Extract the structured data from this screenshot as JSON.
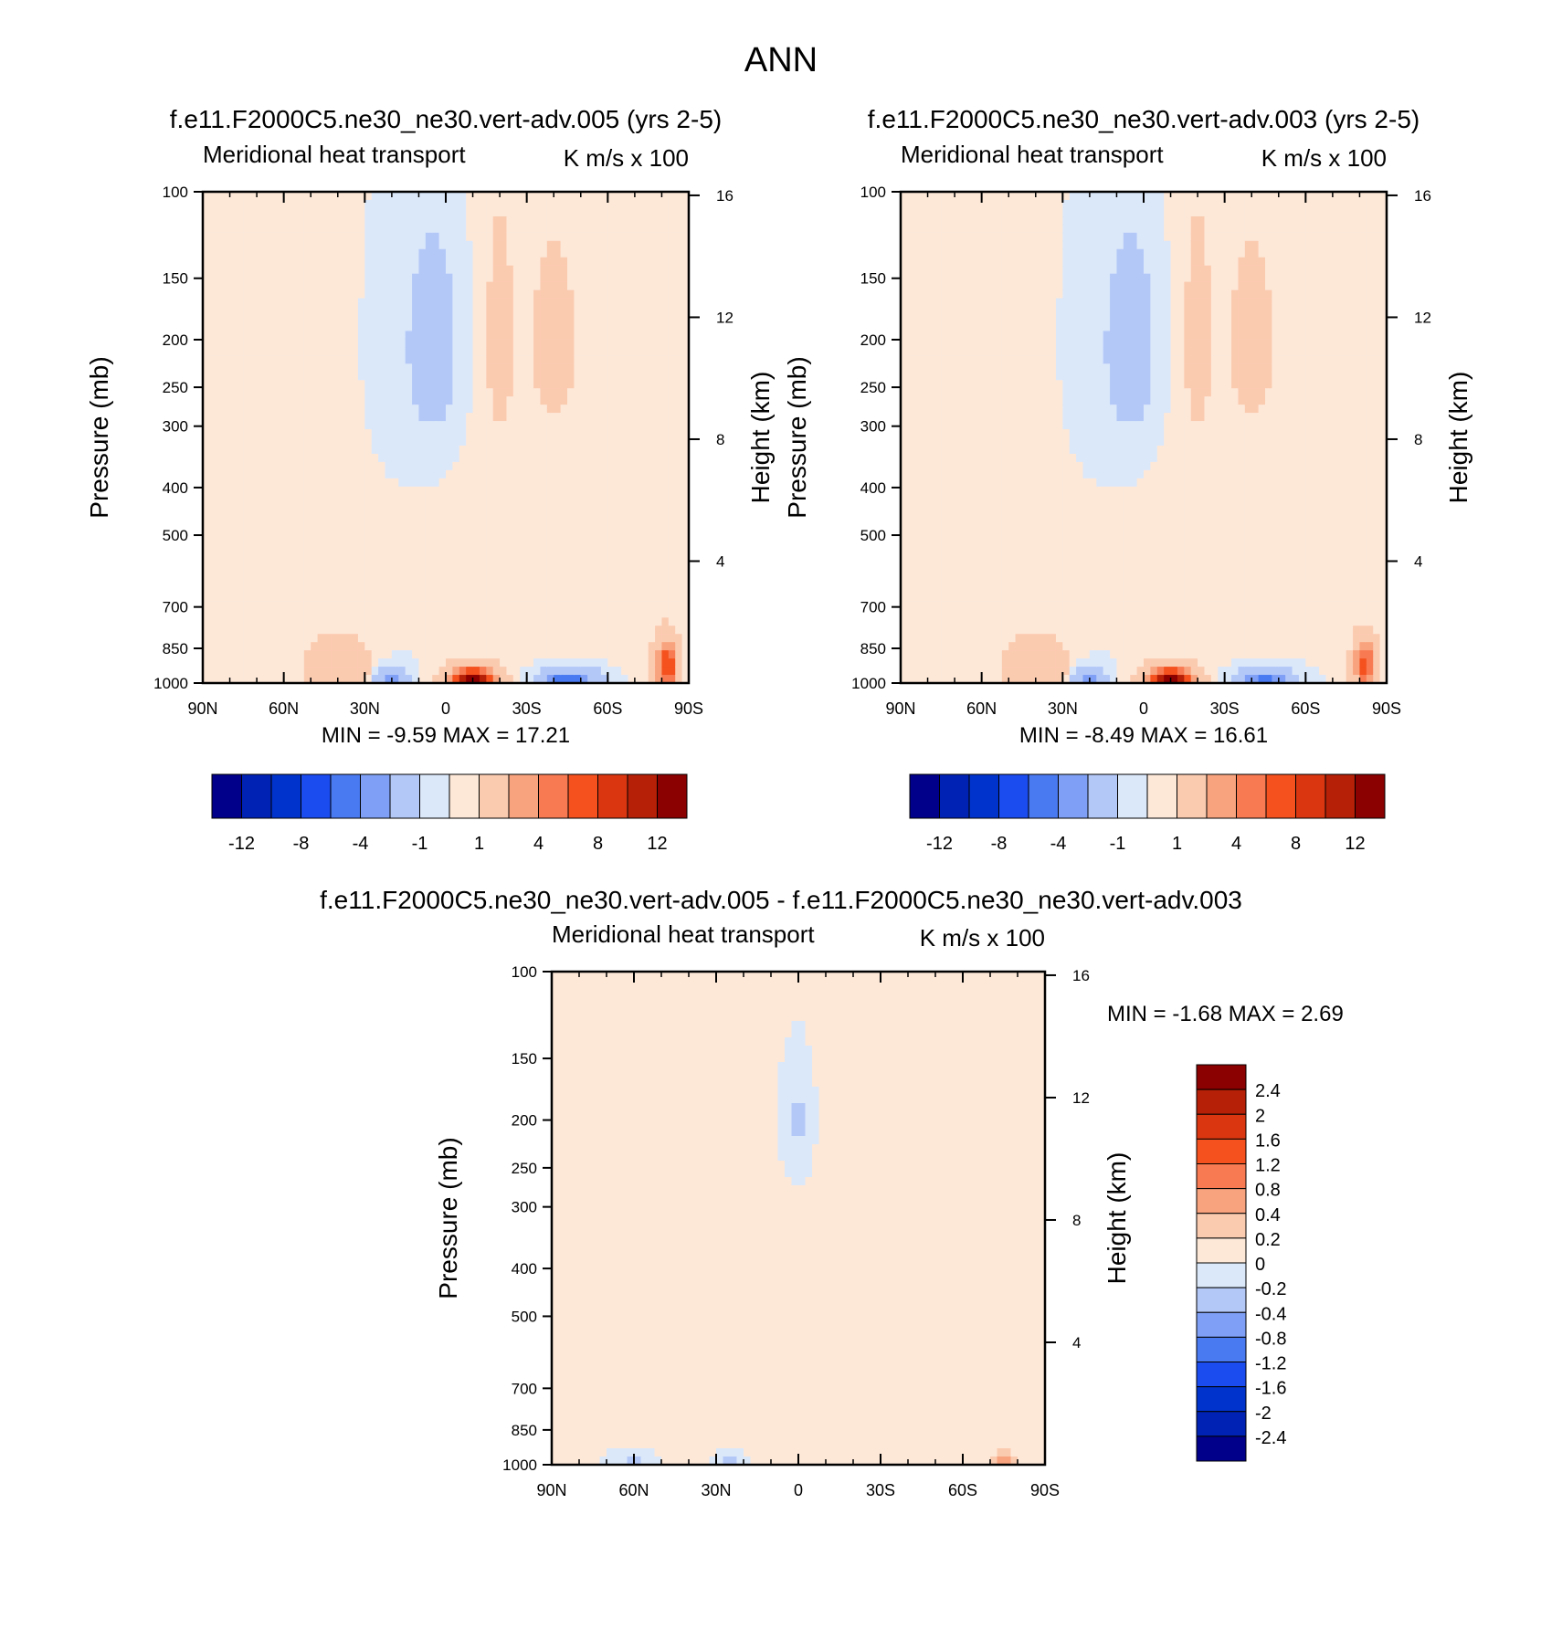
{
  "page_title": "ANN",
  "colors": {
    "main": [
      "#00008b",
      "#0022b4",
      "#0033cc",
      "#1a4cf0",
      "#4a7af2",
      "#7e9ff5",
      "#b4c8f8",
      "#dbe8fa",
      "#fde8d8",
      "#fbcbb0",
      "#f9a37e",
      "#f87a52",
      "#f4511e",
      "#da3610",
      "#b52007",
      "#8b0000"
    ],
    "diff": [
      "#00008b",
      "#0022b4",
      "#0033cc",
      "#1a4cf0",
      "#4a7af2",
      "#7e9ff5",
      "#b4c8f8",
      "#dbe8fa",
      "#fde8d8",
      "#fbcbb0",
      "#f9a37e",
      "#f87a52",
      "#f4511e",
      "#da3610",
      "#b52007",
      "#8b0000"
    ]
  },
  "chart_data": [
    {
      "type": "heatmap",
      "title": "f.e11.F2000C5.ne30_ne30.vert-adv.005 (yrs 2-5)",
      "subtitle_left": "Meridional heat transport",
      "subtitle_right": "K m/s x 100",
      "ylabel": "Pressure (mb)",
      "ylabel_right": "Height (km)",
      "x_ticks": [
        "90N",
        "60N",
        "30N",
        "0",
        "30S",
        "60S",
        "90S"
      ],
      "y_ticks": [
        "100",
        "150",
        "200",
        "250",
        "300",
        "400",
        "500",
        "700",
        "850",
        "1000"
      ],
      "y_right_ticks": [
        "16",
        "12",
        "8",
        "4"
      ],
      "min_max": "MIN =  -9.59  MAX =  17.21",
      "colorbar_labels": [
        "-12",
        "-8",
        "-4",
        "-1",
        "1",
        "4",
        "8",
        "12"
      ],
      "x_range": [
        90,
        -90
      ],
      "y_range": [
        1000,
        100
      ],
      "fields": [
        {
          "level": 0.5,
          "cx": -40,
          "cy": 400,
          "wx": 18,
          "wy": 350
        },
        {
          "level": 2.5,
          "cx": -20,
          "cy": 200,
          "wx": 3,
          "wy": 60
        },
        {
          "level": -3,
          "cx": 5,
          "cy": 210,
          "wx": 6,
          "wy": 60
        },
        {
          "level": 2,
          "cx": -40,
          "cy": 200,
          "wx": 5,
          "wy": 50
        },
        {
          "level": 3.5,
          "cx": 40,
          "cy": 930,
          "wx": 8,
          "wy": 90
        },
        {
          "level": -6,
          "cx": 20,
          "cy": 990,
          "wx": 4,
          "wy": 40
        },
        {
          "level": 16,
          "cx": -10,
          "cy": 990,
          "wx": 6,
          "wy": 45
        },
        {
          "level": -8,
          "cx": -45,
          "cy": 990,
          "wx": 7,
          "wy": 40
        },
        {
          "level": 10,
          "cx": -82,
          "cy": 920,
          "wx": 3,
          "wy": 80
        }
      ]
    },
    {
      "type": "heatmap",
      "title": "f.e11.F2000C5.ne30_ne30.vert-adv.003 (yrs 2-5)",
      "subtitle_left": "Meridional heat transport",
      "subtitle_right": "K m/s x 100",
      "ylabel": "Pressure (mb)",
      "ylabel_right": "Height (km)",
      "x_ticks": [
        "90N",
        "60N",
        "30N",
        "0",
        "30S",
        "60S",
        "90S"
      ],
      "y_ticks": [
        "100",
        "150",
        "200",
        "250",
        "300",
        "400",
        "500",
        "700",
        "850",
        "1000"
      ],
      "y_right_ticks": [
        "16",
        "12",
        "8",
        "4"
      ],
      "min_max": "MIN =  -8.49  MAX =  16.61",
      "colorbar_labels": [
        "-12",
        "-8",
        "-4",
        "-1",
        "1",
        "4",
        "8",
        "12"
      ],
      "x_range": [
        90,
        -90
      ],
      "y_range": [
        1000,
        100
      ],
      "fields": [
        {
          "level": 0.5,
          "cx": -40,
          "cy": 400,
          "wx": 18,
          "wy": 350
        },
        {
          "level": 2.5,
          "cx": -20,
          "cy": 200,
          "wx": 3,
          "wy": 60
        },
        {
          "level": -3,
          "cx": 5,
          "cy": 210,
          "wx": 6,
          "wy": 60
        },
        {
          "level": 2,
          "cx": -40,
          "cy": 200,
          "wx": 5,
          "wy": 50
        },
        {
          "level": 3.5,
          "cx": 40,
          "cy": 930,
          "wx": 8,
          "wy": 90
        },
        {
          "level": -6,
          "cx": 20,
          "cy": 990,
          "wx": 4,
          "wy": 40
        },
        {
          "level": 15,
          "cx": -10,
          "cy": 990,
          "wx": 6,
          "wy": 45
        },
        {
          "level": -7,
          "cx": -45,
          "cy": 990,
          "wx": 7,
          "wy": 40
        },
        {
          "level": 9,
          "cx": -82,
          "cy": 920,
          "wx": 3,
          "wy": 80
        }
      ]
    },
    {
      "type": "heatmap",
      "title": "f.e11.F2000C5.ne30_ne30.vert-adv.005 - f.e11.F2000C5.ne30_ne30.vert-adv.003",
      "subtitle_left": "Meridional heat transport",
      "subtitle_right": "K m/s x 100",
      "ylabel": "Pressure (mb)",
      "ylabel_right": "Height (km)",
      "x_ticks": [
        "90N",
        "60N",
        "30N",
        "0",
        "30S",
        "60S",
        "90S"
      ],
      "y_ticks": [
        "100",
        "150",
        "200",
        "250",
        "300",
        "400",
        "500",
        "700",
        "850",
        "1000"
      ],
      "y_right_ticks": [
        "16",
        "12",
        "8",
        "4"
      ],
      "min_max": "MIN =  -1.68  MAX =    2.69",
      "colorbar_labels": [
        "2.4",
        "2",
        "1.6",
        "1.2",
        "0.8",
        "0.4",
        "0.2",
        "0",
        "-0.2",
        "-0.4",
        "-0.8",
        "-1.2",
        "-1.6",
        "-2",
        "-2.4"
      ],
      "x_range": [
        90,
        -90
      ],
      "y_range": [
        1000,
        100
      ],
      "fields": [
        {
          "level": 0.1,
          "cx": -20,
          "cy": 500,
          "wx": 25,
          "wy": 500
        },
        {
          "level": -0.3,
          "cx": 0,
          "cy": 200,
          "wx": 4,
          "wy": 40
        },
        {
          "level": -0.3,
          "cx": 25,
          "cy": 990,
          "wx": 3,
          "wy": 25
        },
        {
          "level": 0.5,
          "cx": -75,
          "cy": 980,
          "wx": 3,
          "wy": 30
        },
        {
          "level": -0.5,
          "cx": 60,
          "cy": 995,
          "wx": 3,
          "wy": 20
        }
      ]
    }
  ]
}
